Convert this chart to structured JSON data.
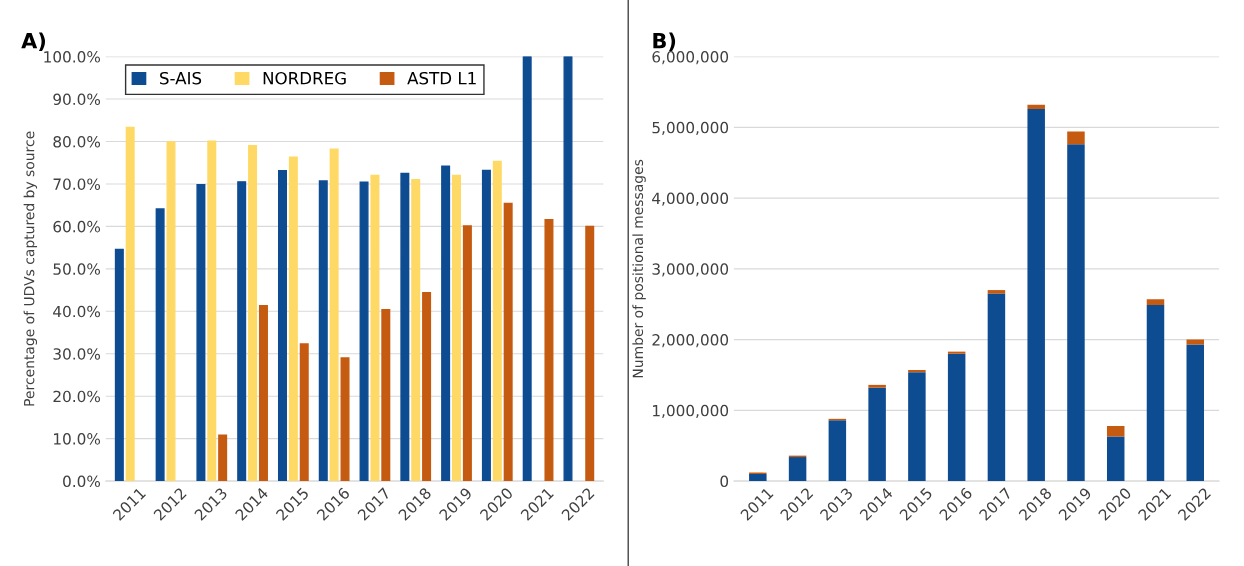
{
  "chart_data": [
    {
      "type": "bar",
      "title": "A)",
      "ylabel": "Percentage of UDVs captured by source",
      "categories": [
        "2011",
        "2012",
        "2013",
        "2014",
        "2015",
        "2016",
        "2017",
        "2018",
        "2019",
        "2020",
        "2021",
        "2022"
      ],
      "series": [
        {
          "name": "S-AIS",
          "color": "#0e4c92",
          "values": [
            54.6,
            64.1,
            69.8,
            70.5,
            73.1,
            70.7,
            70.4,
            72.5,
            74.2,
            73.2,
            100,
            100
          ]
        },
        {
          "name": "NORDREG",
          "color": "#ffd966",
          "values": [
            83.3,
            79.9,
            80.1,
            79.0,
            76.3,
            78.2,
            72.0,
            71.0,
            72.0,
            75.3,
            null,
            null
          ]
        },
        {
          "name": "ASTD L1",
          "color": "#c55a11",
          "values": [
            null,
            null,
            10.8,
            41.3,
            32.3,
            29.0,
            40.4,
            44.4,
            60.1,
            65.4,
            61.6,
            60.0
          ]
        }
      ],
      "ylim": [
        0,
        100
      ],
      "yticks": [
        {
          "value": 0,
          "label": "0.0%"
        },
        {
          "value": 10,
          "label": "10.0%"
        },
        {
          "value": 20,
          "label": "20.0%"
        },
        {
          "value": 30,
          "label": "30.0%"
        },
        {
          "value": 40,
          "label": "40.0%"
        },
        {
          "value": 50,
          "label": "50.0%"
        },
        {
          "value": 60,
          "label": "60.0%"
        },
        {
          "value": 70,
          "label": "70.0%"
        },
        {
          "value": 80,
          "label": "80.0%"
        },
        {
          "value": 90,
          "label": "90.0%"
        },
        {
          "value": 100,
          "label": "100.0%"
        }
      ],
      "grid": "y",
      "legend": "top"
    },
    {
      "type": "bar",
      "title": "B)",
      "ylabel": "Number of positional messages",
      "stacked": true,
      "categories": [
        "2011",
        "2012",
        "2013",
        "2014",
        "2015",
        "2016",
        "2017",
        "2018",
        "2019",
        "2020",
        "2021",
        "2022"
      ],
      "series": [
        {
          "color": "#0e4c92",
          "values": [
            100000,
            340000,
            860000,
            1320000,
            1540000,
            1800000,
            2650000,
            5260000,
            4760000,
            630000,
            2490000,
            1930000
          ]
        },
        {
          "color": "#c55a11",
          "values": [
            20000,
            20000,
            20000,
            40000,
            30000,
            30000,
            50000,
            60000,
            180000,
            150000,
            80000,
            70000
          ]
        }
      ],
      "ylim": [
        0,
        6000000
      ],
      "yticks": [
        0,
        {
          "value": 1000000,
          "label": "1,000,000"
        },
        {
          "value": 2000000,
          "label": "2,000,000"
        },
        {
          "value": 3000000,
          "label": "3,000,000"
        },
        {
          "value": 4000000,
          "label": "4,000,000"
        },
        {
          "value": 5000000,
          "label": "5,000,000"
        },
        {
          "value": 6000000,
          "label": "6,000,000"
        }
      ],
      "grid": "y"
    }
  ]
}
